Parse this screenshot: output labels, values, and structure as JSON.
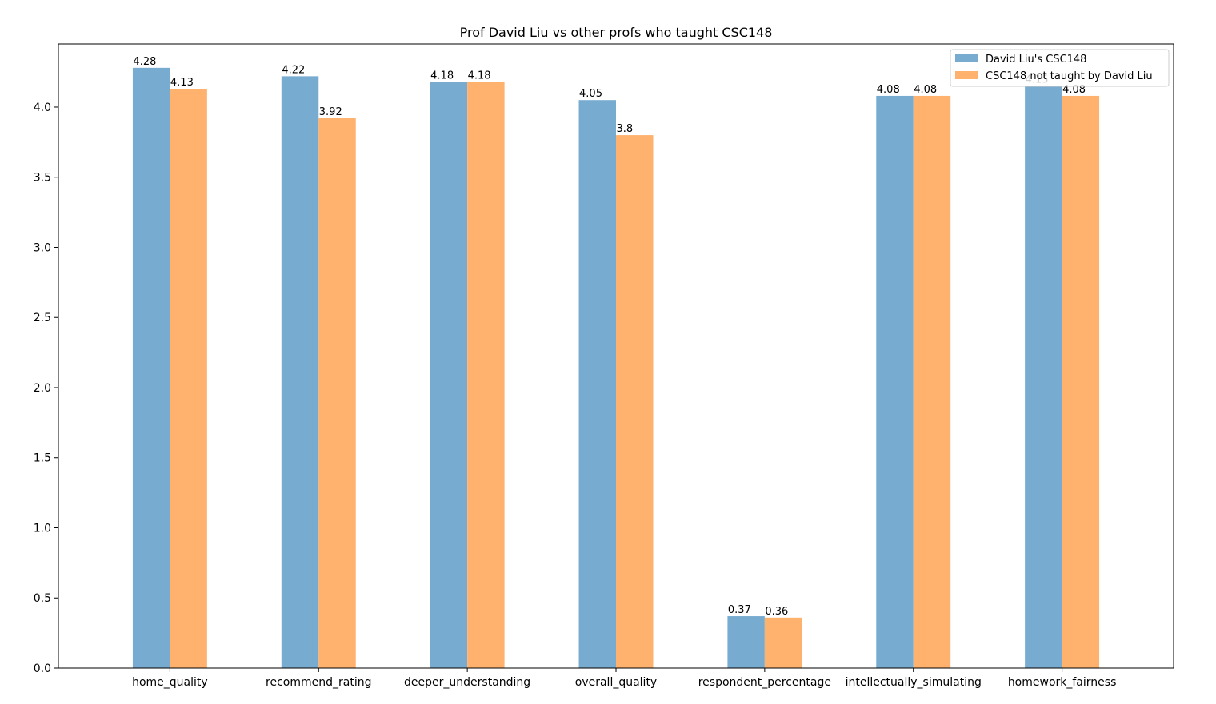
{
  "chart_data": {
    "type": "bar",
    "title": "Prof David Liu vs other profs who taught CSC148",
    "xlabel": "",
    "ylabel": "",
    "ylim": [
      0,
      4.45
    ],
    "yticks": [
      "0.0",
      "0.5",
      "1.0",
      "1.5",
      "2.0",
      "2.5",
      "3.0",
      "3.5",
      "4.0"
    ],
    "grid": false,
    "legend_position": "top-right",
    "categories": [
      "home_quality",
      "recommend_rating",
      "deeper_understanding",
      "overall_quality",
      "respondent_percentage",
      "intellectually_simulating",
      "homework_fairness"
    ],
    "series": [
      {
        "name": "David Liu's CSC148",
        "color": "#77acd0",
        "values": [
          4.28,
          4.22,
          4.18,
          4.05,
          0.37,
          4.08,
          4.15
        ],
        "labels": [
          "4.28",
          "4.22",
          "4.18",
          "4.05",
          "0.37",
          "4.08",
          "4.15"
        ]
      },
      {
        "name": "CSC148 not taught by David Liu",
        "color": "#ffb26e",
        "values": [
          4.13,
          3.92,
          4.18,
          3.8,
          0.36,
          4.08,
          4.08
        ],
        "labels": [
          "4.13",
          "3.92",
          "4.18",
          "3.8",
          "0.36",
          "4.08",
          "4.08"
        ]
      }
    ]
  }
}
